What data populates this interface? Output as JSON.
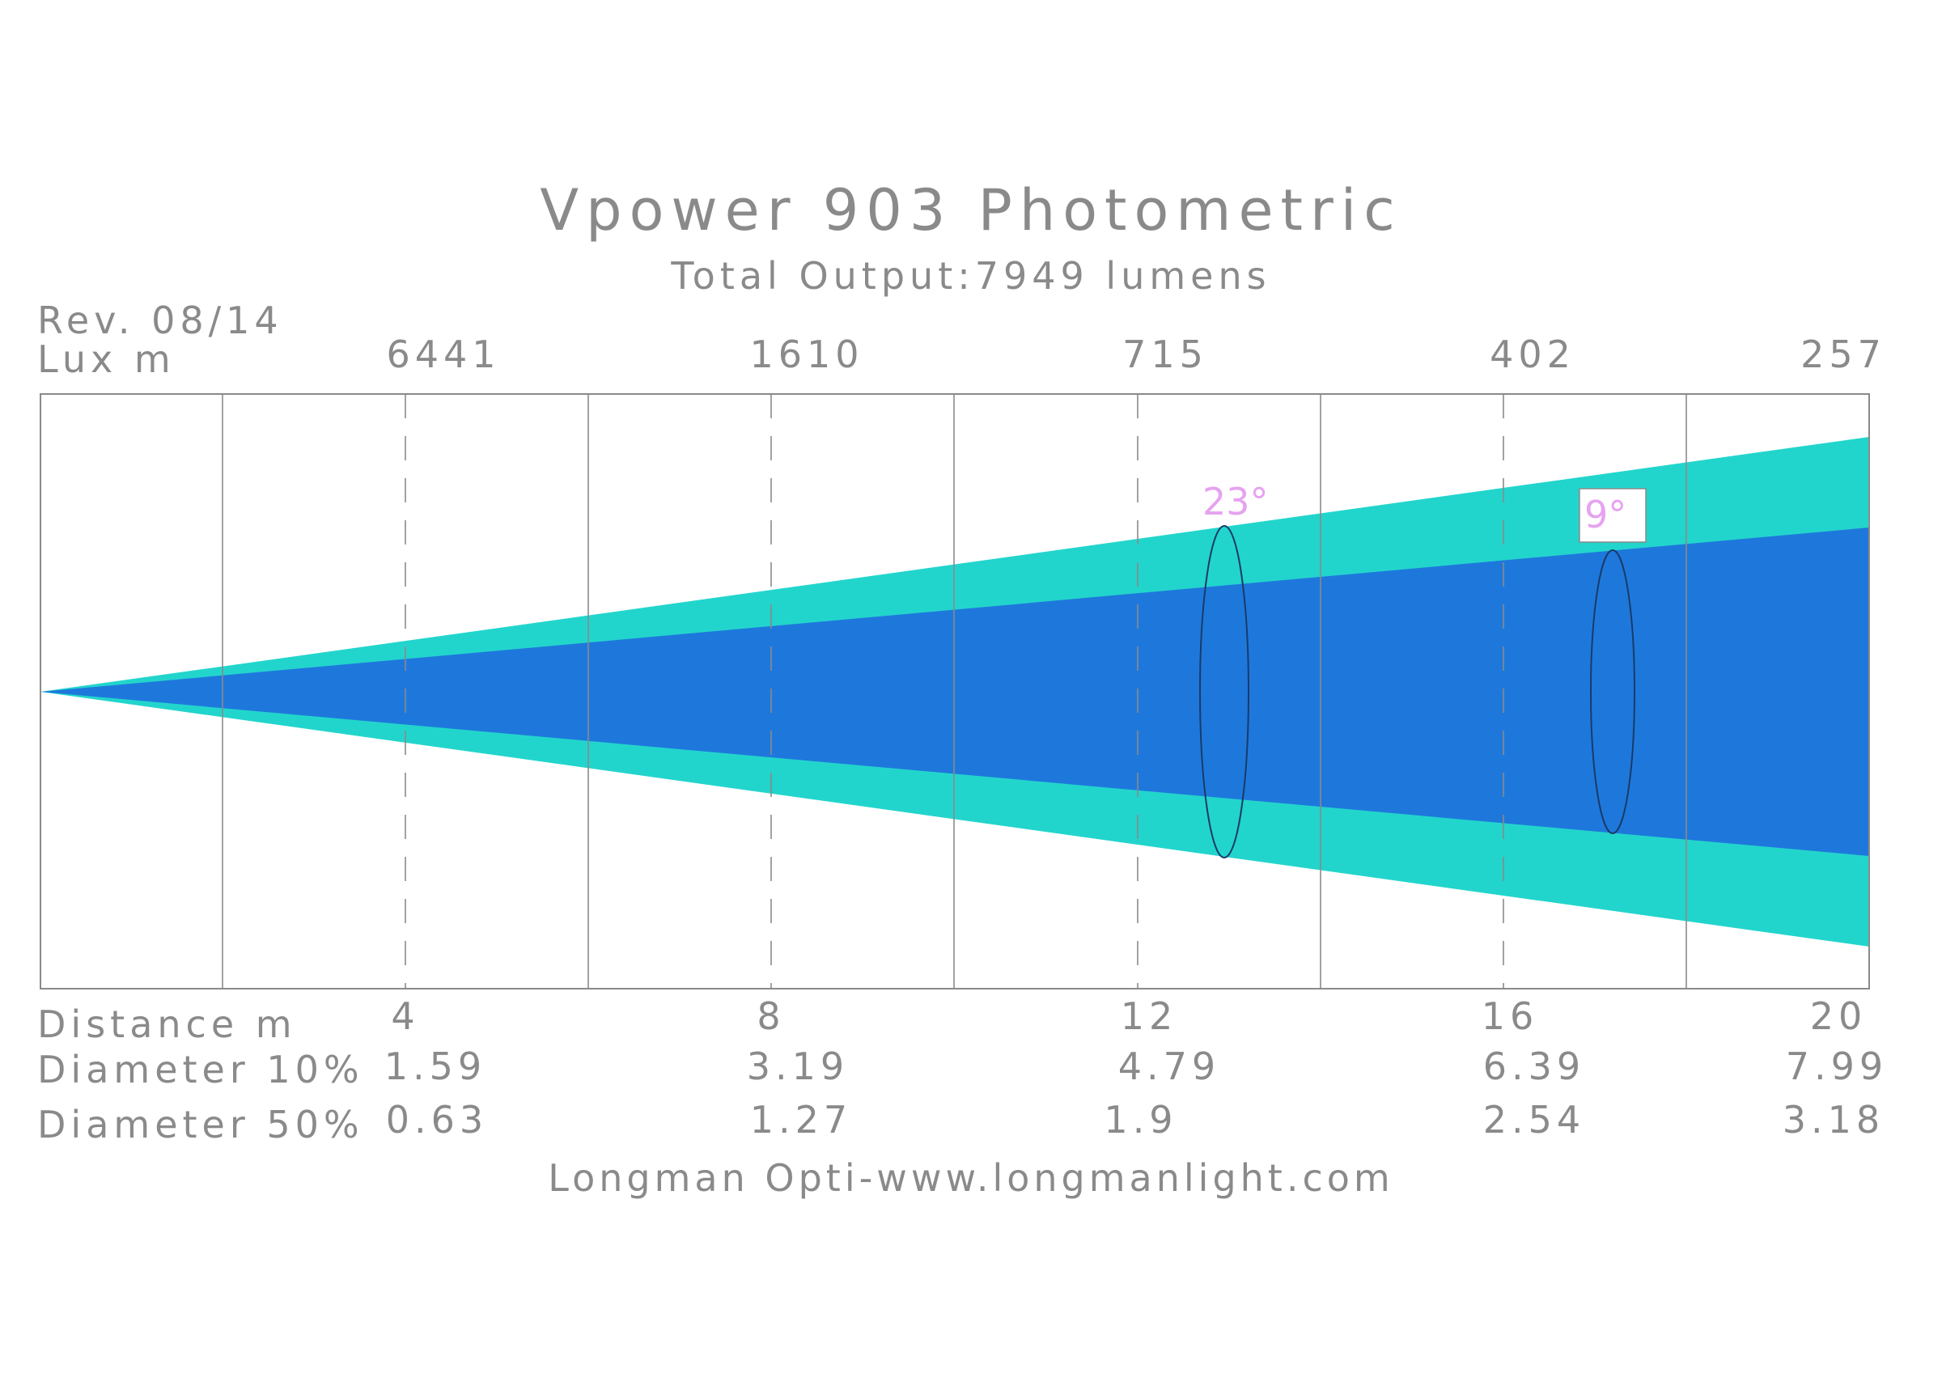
{
  "title": "Vpower 903 Photometric",
  "subtitle": "Total Output:7949 lumens",
  "revision": "Rev. 08/14",
  "lux_label": "Lux m",
  "distance_label": "Distance m",
  "diameter10_label": "Diameter 10%",
  "diameter50_label": "Diameter 50%",
  "footer": "Longman Opti-www.longmanlight.com",
  "beam": {
    "field_angle_label": "23°",
    "beam_angle_label": "9°",
    "field_color": "#22d5cc",
    "beam_color": "#1e78dc"
  },
  "columns": [
    {
      "distance": "4",
      "lux": "6441",
      "d10": "1.59",
      "d50": "0.63"
    },
    {
      "distance": "8",
      "lux": "1610",
      "d10": "3.19",
      "d50": "1.27"
    },
    {
      "distance": "12",
      "lux": "715",
      "d10": "4.79",
      "d50": "1.9"
    },
    {
      "distance": "16",
      "lux": "402",
      "d10": "6.39",
      "d50": "2.54"
    },
    {
      "distance": "20",
      "lux": "257",
      "d10": "7.99",
      "d50": "3.18"
    }
  ]
}
